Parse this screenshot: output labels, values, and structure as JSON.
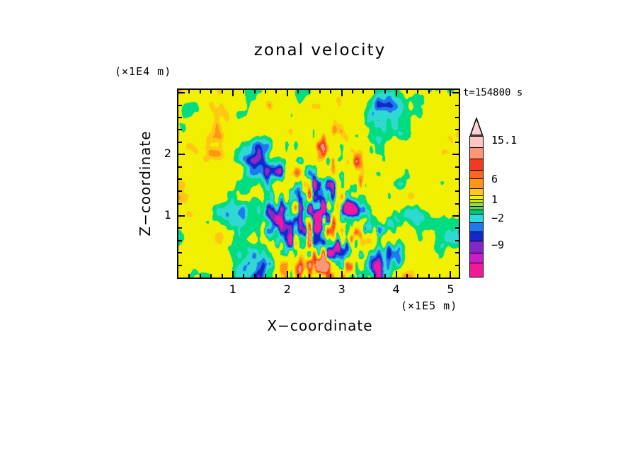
{
  "title": "zonal velocity",
  "annotation": {
    "time": "t=154800 s"
  },
  "x_axis": {
    "label": "X−coordinate",
    "unit": "(×1E5 m)",
    "tick_labels": [
      "1",
      "2",
      "3",
      "4",
      "5"
    ],
    "tick_values": [
      1,
      2,
      3,
      4,
      5
    ],
    "range": [
      0,
      5.15
    ],
    "minor_step": 0.2
  },
  "y_axis": {
    "label": "Z−coordinate",
    "unit": "(×1E4 m)",
    "tick_labels": [
      "1",
      "2"
    ],
    "tick_values": [
      1,
      2
    ],
    "range": [
      0,
      3.05
    ],
    "minor_step": 0.2
  },
  "colorbar": {
    "tip_color": "#FFD2D2",
    "labels": [
      "15.1",
      "6",
      "1",
      "−2",
      "−9"
    ],
    "segments": [
      {
        "color": "#FFC4C4",
        "h": 16
      },
      {
        "color": "#FF9678",
        "h": 16
      },
      {
        "color": "#F03C1E",
        "h": 16
      },
      {
        "color": "#FF641E",
        "h": 12
      },
      {
        "color": "#FF9614",
        "h": 14
      },
      {
        "color": "#FFC814",
        "h": 10
      },
      {
        "color": "#F0F000",
        "h": 5
      },
      {
        "color": "#C8E614",
        "h": 5
      },
      {
        "color": "#96DC28",
        "h": 5
      },
      {
        "color": "#5AD24B",
        "h": 5
      },
      {
        "color": "#00C878",
        "h": 6
      },
      {
        "color": "#28DCDC",
        "h": 12
      },
      {
        "color": "#1E78F0",
        "h": 13
      },
      {
        "color": "#1428C8",
        "h": 13
      },
      {
        "color": "#8228C8",
        "h": 17
      },
      {
        "color": "#C81EC8",
        "h": 14
      },
      {
        "color": "#F01996",
        "h": 19
      }
    ]
  },
  "chart_data": {
    "type": "heatmap",
    "title": "zonal velocity",
    "xlabel": "X-coordinate (×1E5 m)",
    "ylabel": "Z-coordinate (×1E4 m)",
    "x_range": [
      0,
      5.15
    ],
    "y_range": [
      0,
      3.05
    ],
    "time_label": "t=154800 s",
    "contour_levels": [
      -9,
      -2,
      1,
      6,
      15.1
    ],
    "value_max": 15.1,
    "legend_position": "right",
    "grid": false,
    "field_description": "turbulent filled-contour zonal velocity field; mostly yellow (1..6) and green (-2..1) with cyan/blue negative pockets and orange/red positive streaks, strongest activity band near x=2..3.5",
    "palette": {
      "thresholds": [
        -0.95,
        -0.8,
        -0.64,
        -0.5,
        -0.32,
        -0.1,
        0.46,
        0.6,
        0.76,
        0.9,
        1.02
      ],
      "colors": [
        "#F019A0",
        "#8C28C8",
        "#1428C8",
        "#1E78F0",
        "#30D8D2",
        "#00DC82",
        "#F0F000",
        "#FFC814",
        "#FF9614",
        "#FF641E",
        "#F03C1E",
        "#FF9678"
      ]
    },
    "render_params": {
      "octaves": [
        [
          7,
          4.5,
          0.4
        ],
        [
          14,
          9,
          0.28
        ],
        [
          28,
          14,
          0.18
        ],
        [
          52,
          24,
          0.1
        ]
      ],
      "center": [
        0.52,
        0.28,
        0.2,
        0.45
      ],
      "detail": [
        60,
        16,
        0.5
      ],
      "boost": 1.3,
      "scale": 2.4,
      "offset": 0.1
    }
  }
}
